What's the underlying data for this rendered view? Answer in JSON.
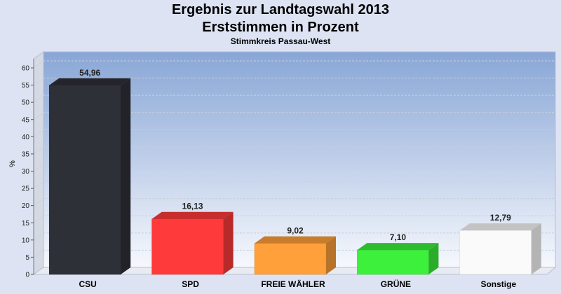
{
  "chart_data": {
    "type": "bar",
    "title_line1": "Ergebnis zur Landtagswahl 2013",
    "title_line2": "Erststimmen in Prozent",
    "subtitle": "Stimmkreis Passau-West",
    "ylabel": "%",
    "xlabel": "",
    "ylim": [
      0,
      60
    ],
    "ytick_step": 5,
    "grid": true,
    "categories": [
      "CSU",
      "SPD",
      "FREIE WÄHLER",
      "GRÜNE",
      "Sonstige"
    ],
    "values": [
      54.96,
      16.13,
      9.02,
      7.1,
      12.79
    ],
    "value_labels": [
      "54,96",
      "16,13",
      "9,02",
      "7,10",
      "12,79"
    ],
    "colors": [
      "#2e3038",
      "#ff3a3a",
      "#ffa03a",
      "#3cf03c",
      "#fafafa"
    ]
  }
}
